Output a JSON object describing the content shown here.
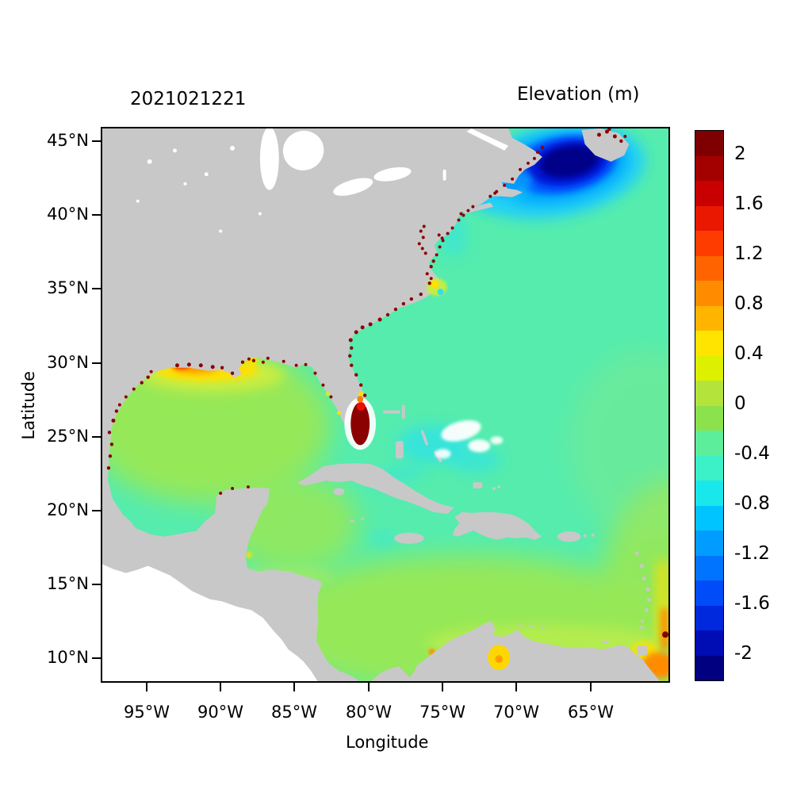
{
  "figure": {
    "date_label": "2021021221",
    "colorbar_title": "Elevation (m)"
  },
  "axes": {
    "x_label": "Longitude",
    "y_label": "Latitude",
    "x_ticks": [
      "95°W",
      "90°W",
      "85°W",
      "80°W",
      "75°W",
      "70°W",
      "65°W"
    ],
    "y_ticks": [
      "45°N",
      "40°N",
      "35°N",
      "30°N",
      "25°N",
      "20°N",
      "15°N",
      "10°N"
    ]
  },
  "colorbar": {
    "units": "m",
    "tick_labels": [
      "2",
      "1.6",
      "1.2",
      "0.8",
      "0.4",
      "0",
      "-0.4",
      "-0.8",
      "-1.2",
      "-1.6",
      "-2"
    ],
    "segment_colors_top_to_bottom": [
      "#7f0000",
      "#a30000",
      "#c80000",
      "#ea1800",
      "#ff3c00",
      "#ff6400",
      "#ff8c00",
      "#ffb400",
      "#ffe400",
      "#dcf000",
      "#b4e43c",
      "#8ce24c",
      "#5cee9b",
      "#3cf0c8",
      "#18e8ec",
      "#00c4ff",
      "#009cff",
      "#0074ff",
      "#004cf8",
      "#0028dc",
      "#000cb4",
      "#000080"
    ]
  },
  "map": {
    "land_color": "#c8c8c8",
    "no_data_color": "#ffffff",
    "open_atlantic_color": "#55ecae",
    "gulf_caribbean_color": "#98e856"
  },
  "chart_data": {
    "type": "heatmap",
    "title": "Elevation (m)",
    "subtitle_datecode": "2021021221",
    "xlabel": "Longitude",
    "ylabel": "Latitude",
    "x_range_deg_west": [
      98,
      60
    ],
    "y_range_deg_north": [
      8.5,
      46
    ],
    "grid": false,
    "legend_position": "right-colorbar",
    "colorbar": {
      "min": -2.2,
      "max": 2.2,
      "step": 0.2,
      "tick_values": [
        2,
        1.6,
        1.2,
        0.8,
        0.4,
        0,
        -0.4,
        -0.8,
        -1.2,
        -1.6,
        -2
      ]
    },
    "regions": [
      {
        "area": "Gulf of Maine / Scotian Shelf low (43N 67W)",
        "elevation_m": -2.0
      },
      {
        "area": "Ring around Gulf of Maine low",
        "elevation_m": -1.0
      },
      {
        "area": "Open western Atlantic",
        "elevation_m": -0.3
      },
      {
        "area": "Gulf of Mexico interior",
        "elevation_m": 0.1
      },
      {
        "area": "Southern Caribbean Sea",
        "elevation_m": 0.1
      },
      {
        "area": "South Florida flooded cells (26N 80.5W)",
        "elevation_m": 2.2
      },
      {
        "area": "Louisiana-Mississippi shelf (29.5N 91W)",
        "elevation_m": 0.8
      },
      {
        "area": "Pamlico Sound (35.3N 76W)",
        "elevation_m": 0.4
      },
      {
        "area": "Bahamas / Florida Strait patches",
        "elevation_m": -0.7
      },
      {
        "area": "Lake Maracaibo (9.8N 71.5W)",
        "elevation_m": 0.5
      },
      {
        "area": "Orinoco delta / Trinidad shelf (9.5N 61W)",
        "elevation_m": 0.8
      },
      {
        "area": "Coastal wet-dry speckle fringe",
        "elevation_m": 2.0
      },
      {
        "area": "Land (gray)",
        "elevation_m": null
      },
      {
        "area": "Pacific / out of domain (white)",
        "elevation_m": null
      }
    ]
  }
}
